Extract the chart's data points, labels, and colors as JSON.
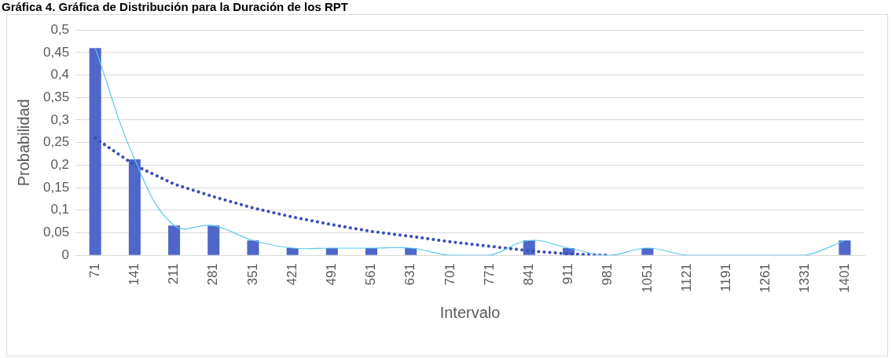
{
  "chart_data": {
    "type": "bar",
    "title": "Gráfica 4. Gráfica de Distribución para la Duración de los RPT",
    "xlabel": "Intervalo",
    "ylabel": "Probabilidad",
    "categories": [
      "71",
      "141",
      "211",
      "281",
      "351",
      "421",
      "491",
      "561",
      "631",
      "701",
      "771",
      "841",
      "911",
      "981",
      "1051",
      "1121",
      "1191",
      "1261",
      "1331",
      "1401"
    ],
    "series": [
      {
        "color": "#4f67c8",
        "values": [
          0.46,
          0.213,
          0.066,
          0.066,
          0.033,
          0.016,
          0.016,
          0.016,
          0.016,
          0,
          0,
          0.033,
          0.016,
          0,
          0.016,
          0,
          0,
          0,
          0,
          0.033
        ]
      },
      {
        "type": "line",
        "color": "#5bc8f0",
        "values": [
          0.46,
          0.213,
          0.066,
          0.066,
          0.033,
          0.016,
          0.016,
          0.016,
          0.016,
          0,
          0,
          0.033,
          0.016,
          0,
          0.016,
          0,
          0,
          0,
          0,
          0.033
        ]
      },
      {
        "type": "line",
        "color": "#3a4fb8",
        "line_style": "dotted",
        "values": [
          0.26,
          0.2,
          0.158,
          0.13,
          0.105,
          0.085,
          0.068,
          0.053,
          0.042,
          0.03,
          0.02,
          0.01,
          0.003,
          0,
          null,
          null,
          null,
          null,
          null,
          null
        ]
      }
    ],
    "ylim": [
      0,
      0.5
    ],
    "yticks": [
      0,
      {
        "value": 0.05,
        "label": "0,05"
      },
      {
        "value": 0.1,
        "label": "0,1"
      },
      {
        "value": 0.15,
        "label": "0,15"
      },
      {
        "value": 0.2,
        "label": "0,2"
      },
      {
        "value": 0.25,
        "label": "0,25"
      },
      {
        "value": 0.3,
        "label": "0,3"
      },
      {
        "value": 0.35,
        "label": "0,35"
      },
      {
        "value": 0.4,
        "label": "0,4"
      },
      {
        "value": 0.45,
        "label": "0,45"
      },
      {
        "value": 0.5,
        "label": "0,5"
      }
    ],
    "grid": "y",
    "legend": false
  }
}
